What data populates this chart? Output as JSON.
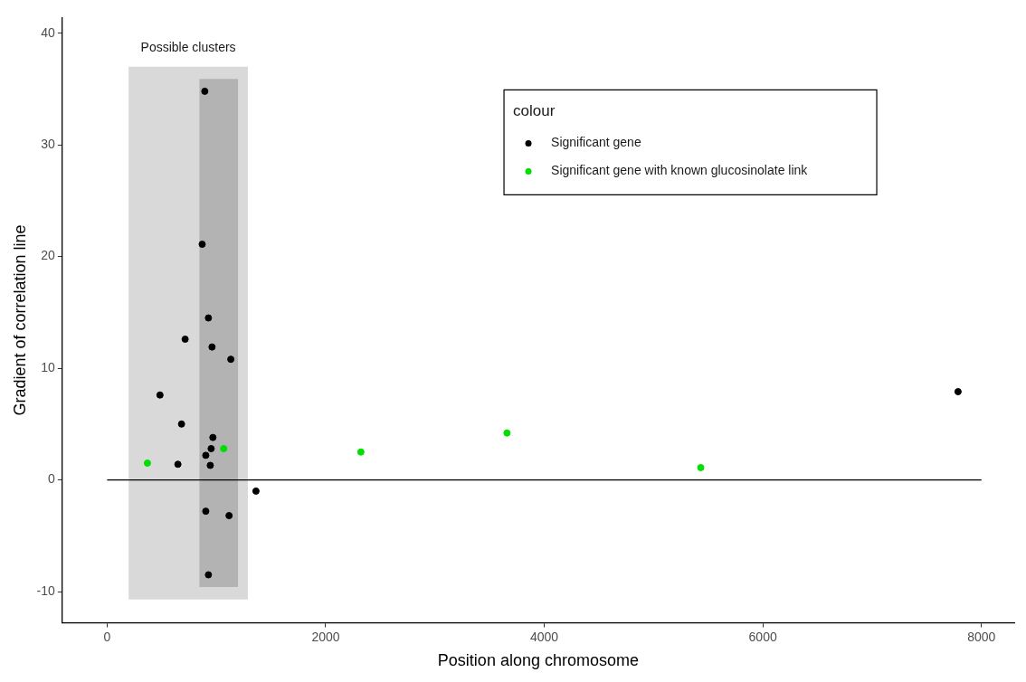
{
  "chart_data": {
    "type": "scatter",
    "xlabel": "Position along chromosome",
    "ylabel": "Gradient of correlation line",
    "legend_title": "colour",
    "series": [
      {
        "name": "Significant gene",
        "color": "#000000",
        "x": [
          894,
          870,
          927,
          714,
          960,
          1132,
          484,
          681,
          968,
          952,
          903,
          648,
          944,
          1362,
          903,
          1116,
          927,
          7786
        ],
        "values": [
          34.8,
          21.1,
          14.5,
          12.6,
          11.9,
          10.8,
          7.6,
          5.0,
          3.8,
          2.8,
          2.2,
          1.4,
          1.3,
          -1.0,
          -2.8,
          -3.2,
          -8.5,
          7.9
        ]
      },
      {
        "name": "Significant gene with known glucosinolate link",
        "color": "#00e000",
        "x": [
          369,
          1067,
          2322,
          3659,
          5432
        ],
        "values": [
          1.5,
          2.8,
          2.5,
          4.2,
          1.1
        ]
      }
    ],
    "xlim": [
      -410,
      8300
    ],
    "xticks": [
      0,
      2000,
      4000,
      6000,
      8000
    ],
    "ylim": [
      -12.8,
      41.4
    ],
    "yticks": [
      -10,
      0,
      10,
      20,
      30,
      40
    ],
    "bands": [
      {
        "axis": "x",
        "from": 197,
        "to": 1288,
        "label": "Possible clusters",
        "color": "#d9d9d9"
      },
      {
        "axis": "x",
        "from": 845,
        "to": 1198,
        "color": "#b3b3b3"
      }
    ],
    "ref_lines": [
      {
        "axis": "y",
        "value": 0,
        "color": "#000000"
      }
    ],
    "grid": false,
    "legend": "top right",
    "marker": "circle"
  }
}
